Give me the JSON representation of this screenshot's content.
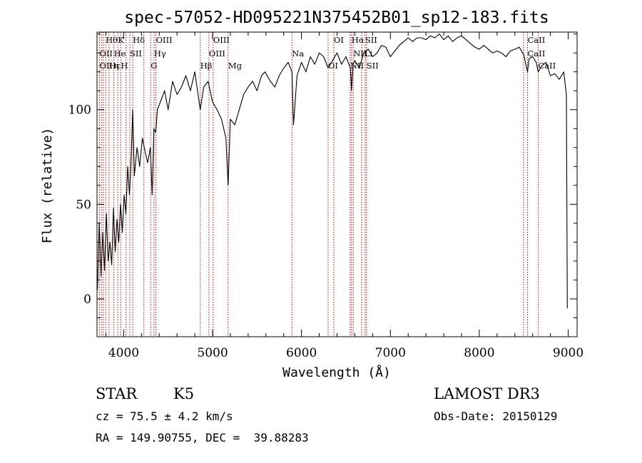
{
  "chart_data": {
    "type": "line",
    "title": "spec-57052-HD095221N375452B01_sp12-183.fits",
    "xlabel": "Wavelength (Å)",
    "ylabel": "Flux (relative)",
    "xlim": [
      3700,
      9100
    ],
    "ylim": [
      -20,
      141
    ],
    "x_ticks": [
      4000,
      5000,
      6000,
      7000,
      8000,
      9000
    ],
    "x_tick_labels": [
      "4000",
      "5000",
      "6000",
      "7000",
      "8000",
      "9000"
    ],
    "y_ticks": [
      0,
      50,
      100
    ],
    "y_tick_labels": [
      "0",
      "50",
      "100"
    ],
    "series": [
      {
        "name": "spectrum",
        "x": [
          3705,
          3725,
          3745,
          3765,
          3785,
          3805,
          3825,
          3845,
          3865,
          3885,
          3905,
          3925,
          3945,
          3965,
          3985,
          4005,
          4025,
          4045,
          4065,
          4085,
          4101,
          4120,
          4150,
          4180,
          4210,
          4240,
          4270,
          4300,
          4320,
          4340,
          4360,
          4380,
          4420,
          4460,
          4500,
          4550,
          4600,
          4650,
          4700,
          4750,
          4800,
          4861,
          4900,
          4950,
          5000,
          5050,
          5100,
          5150,
          5175,
          5200,
          5250,
          5300,
          5350,
          5400,
          5450,
          5500,
          5550,
          5590,
          5650,
          5700,
          5750,
          5800,
          5850,
          5893,
          5910,
          5950,
          6000,
          6050,
          6100,
          6150,
          6200,
          6250,
          6300,
          6350,
          6400,
          6450,
          6500,
          6550,
          6563,
          6580,
          6600,
          6650,
          6700,
          6750,
          6800,
          6850,
          6900,
          6950,
          7000,
          7050,
          7100,
          7150,
          7200,
          7250,
          7300,
          7350,
          7400,
          7450,
          7500,
          7550,
          7600,
          7650,
          7700,
          7750,
          7800,
          7850,
          7900,
          7950,
          8000,
          8050,
          8100,
          8150,
          8200,
          8250,
          8300,
          8350,
          8400,
          8450,
          8500,
          8542,
          8560,
          8600,
          8640,
          8662,
          8700,
          8750,
          8800,
          8850,
          8900,
          8950,
          8980,
          8990
        ],
        "values": [
          5,
          40,
          12,
          35,
          15,
          45,
          20,
          30,
          18,
          48,
          25,
          42,
          30,
          50,
          35,
          55,
          45,
          70,
          55,
          75,
          100,
          65,
          80,
          70,
          85,
          78,
          72,
          80,
          55,
          90,
          88,
          100,
          105,
          110,
          100,
          115,
          108,
          112,
          118,
          110,
          120,
          100,
          112,
          115,
          104,
          100,
          95,
          85,
          60,
          95,
          92,
          100,
          108,
          112,
          115,
          110,
          118,
          120,
          115,
          112,
          118,
          122,
          125,
          120,
          92,
          118,
          125,
          120,
          128,
          124,
          130,
          128,
          122,
          126,
          130,
          124,
          128,
          122,
          110,
          124,
          126,
          122,
          130,
          132,
          128,
          130,
          134,
          133,
          128,
          131,
          134,
          136,
          138,
          136,
          138,
          138,
          137,
          139,
          138,
          140,
          137,
          139,
          136,
          138,
          139,
          137,
          135,
          133,
          132,
          134,
          132,
          130,
          131,
          130,
          128,
          131,
          132,
          133,
          129,
          120,
          127,
          128,
          125,
          120,
          123,
          125,
          118,
          119,
          116,
          120,
          108,
          -5
        ]
      }
    ],
    "line_markers": {
      "wavelengths": [
        3727,
        3750,
        3771,
        3798,
        3835,
        3889,
        3934,
        3968,
        4026,
        4069,
        4102,
        4227,
        4304,
        4341,
        4363,
        4861,
        4959,
        5007,
        5175,
        5893,
        6300,
        6364,
        6548,
        6563,
        6583,
        6678,
        6716,
        6731,
        8498,
        8542,
        8662
      ],
      "labels": [
        {
          "text": "Hθ",
          "w": 3797,
          "row": 0
        },
        {
          "text": "K",
          "w": 3934,
          "row": 0
        },
        {
          "text": "Hδ",
          "w": 4102,
          "row": 0
        },
        {
          "text": "OIII",
          "w": 4363,
          "row": 0
        },
        {
          "text": "OIII",
          "w": 5007,
          "row": 0
        },
        {
          "text": "OI",
          "w": 6364,
          "row": 0
        },
        {
          "text": "Hα",
          "w": 6563,
          "row": 0
        },
        {
          "text": "SII",
          "w": 6716,
          "row": 0
        },
        {
          "text": "CaII",
          "w": 8542,
          "row": 0
        },
        {
          "text": "OII",
          "w": 3727,
          "row": 1
        },
        {
          "text": "He",
          "w": 3889,
          "row": 1
        },
        {
          "text": "SII",
          "w": 4069,
          "row": 1
        },
        {
          "text": "Hγ",
          "w": 4341,
          "row": 1
        },
        {
          "text": "OIII",
          "w": 4959,
          "row": 1
        },
        {
          "text": "Na",
          "w": 5893,
          "row": 1
        },
        {
          "text": "NII",
          "w": 6583,
          "row": 1
        },
        {
          "text": "Li",
          "w": 6708,
          "row": 1
        },
        {
          "text": "CaII",
          "w": 8542,
          "row": 1
        },
        {
          "text": "OII",
          "w": 3727,
          "row": 2
        },
        {
          "text": "Hε",
          "w": 3835,
          "row": 2
        },
        {
          "text": "η",
          "w": 3889,
          "row": 2
        },
        {
          "text": "H",
          "w": 3968,
          "row": 2
        },
        {
          "text": "G",
          "w": 4304,
          "row": 2
        },
        {
          "text": "Hβ",
          "w": 4861,
          "row": 2
        },
        {
          "text": "Mg",
          "w": 5175,
          "row": 2
        },
        {
          "text": "OI",
          "w": 6300,
          "row": 2
        },
        {
          "text": "NII",
          "w": 6548,
          "row": 2
        },
        {
          "text": "SII",
          "w": 6731,
          "row": 2
        },
        {
          "text": "CaII",
          "w": 8662,
          "row": 2
        }
      ]
    }
  },
  "info": {
    "object_class": "STAR",
    "subclass": "K5",
    "survey": "LAMOST DR3",
    "redshift_line": "cz = 75.5 ± 4.2 km/s",
    "obs_date": "Obs-Date: 20150129",
    "coords": "RA = 149.90755, DEC =  39.88283"
  },
  "colors": {
    "spectrum": "#000000",
    "markers": "#cc0000",
    "axes": "#000000"
  }
}
